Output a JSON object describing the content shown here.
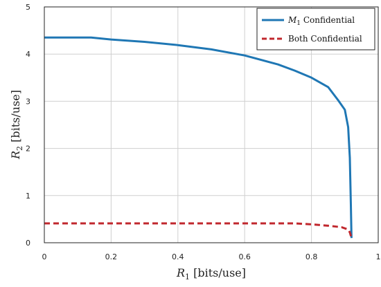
{
  "chart_data": {
    "type": "line",
    "xlabel": {
      "var": "R",
      "sub": "1",
      "unit": " [bits/use]"
    },
    "ylabel": {
      "var": "R",
      "sub": "2",
      "unit": " [bits/use]"
    },
    "xlim": [
      0,
      1
    ],
    "ylim": [
      0,
      5
    ],
    "xticks": [
      0,
      0.2,
      0.4,
      0.6,
      0.8,
      1
    ],
    "xtick_labels": [
      "0",
      "0.2",
      "0.4",
      "0.6",
      "0.8",
      "1"
    ],
    "yticks": [
      0,
      1,
      2,
      3,
      4,
      5
    ],
    "ytick_labels": [
      "0",
      "1",
      "2",
      "3",
      "4",
      "5"
    ],
    "grid": true,
    "legend_position": "top-right",
    "series": [
      {
        "name": "M1 Confidential",
        "legend": {
          "var": "M",
          "sub": "1",
          "rest": " Confidential"
        },
        "color": "#1f77b4",
        "style": "solid",
        "x": [
          0,
          0.14,
          0.2,
          0.3,
          0.4,
          0.5,
          0.6,
          0.7,
          0.75,
          0.8,
          0.85,
          0.88,
          0.9,
          0.91,
          0.915,
          0.918,
          0.92
        ],
        "y": [
          4.35,
          4.35,
          4.31,
          4.26,
          4.19,
          4.1,
          3.97,
          3.78,
          3.65,
          3.5,
          3.3,
          3.02,
          2.82,
          2.45,
          1.8,
          0.8,
          0.1
        ]
      },
      {
        "name": "Both Confidential",
        "legend": {
          "var": "",
          "sub": "",
          "rest": "Both Confidential"
        },
        "color": "#c0272d",
        "style": "dashed",
        "x": [
          0,
          0.2,
          0.4,
          0.6,
          0.7,
          0.75,
          0.8,
          0.85,
          0.89,
          0.91,
          0.915,
          0.92
        ],
        "y": [
          0.41,
          0.41,
          0.41,
          0.41,
          0.41,
          0.41,
          0.39,
          0.36,
          0.33,
          0.28,
          0.22,
          0.1
        ]
      }
    ]
  }
}
